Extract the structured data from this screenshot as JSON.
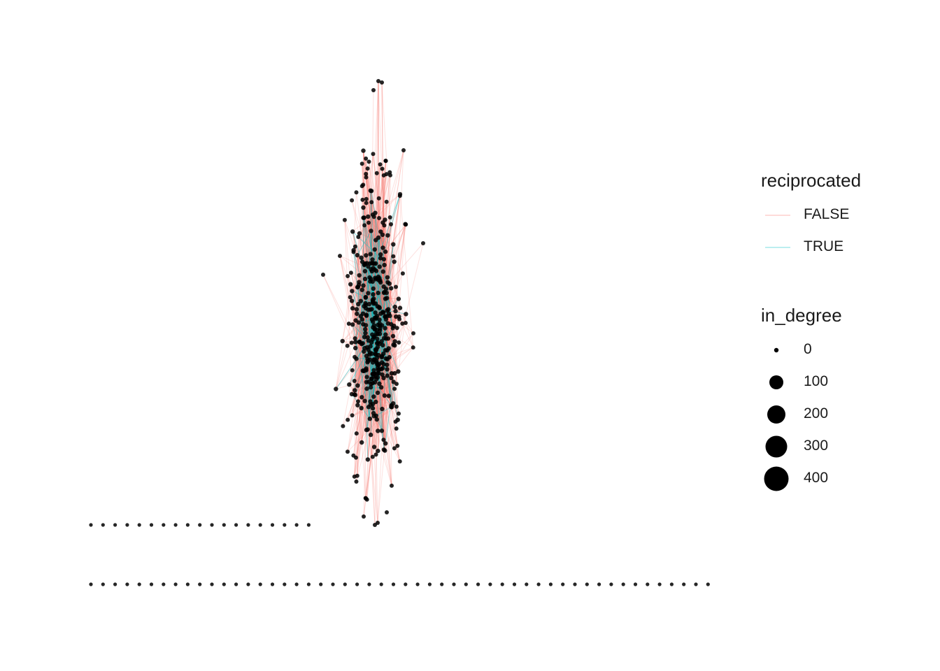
{
  "legends": {
    "edge": {
      "title": "reciprocated",
      "items": [
        {
          "label": "FALSE",
          "color": "#F8766D"
        },
        {
          "label": "TRUE",
          "color": "#00BFC4"
        }
      ]
    },
    "node": {
      "title": "in_degree",
      "items": [
        {
          "label": "0",
          "value": 0
        },
        {
          "label": "100",
          "value": 100
        },
        {
          "label": "200",
          "value": 200
        },
        {
          "label": "300",
          "value": 300
        },
        {
          "label": "400",
          "value": 400
        }
      ]
    }
  },
  "graph": {
    "layout": "force-directed",
    "node_color": "#000000",
    "isolated_rows": [
      19,
      52
    ],
    "cluster_nodes": 420,
    "edges_false": 1500,
    "edges_true": 160
  }
}
